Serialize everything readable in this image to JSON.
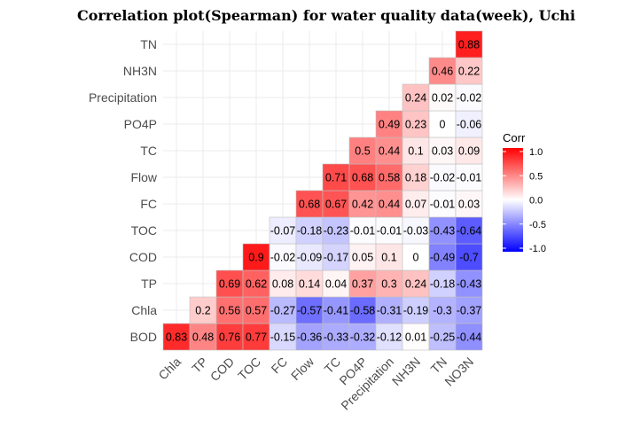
{
  "chart_data": {
    "type": "heatmap",
    "title": "Correlation plot(Spearman) for water quality data(week), Uchi",
    "x_categories": [
      "Chla",
      "TP",
      "COD",
      "TOC",
      "FC",
      "Flow",
      "TC",
      "PO4P",
      "Precipitation",
      "NH3N",
      "TN",
      "NO3N"
    ],
    "y_categories": [
      "BOD",
      "Chla",
      "TP",
      "COD",
      "TOC",
      "FC",
      "Flow",
      "TC",
      "PO4P",
      "Precipitation",
      "NH3N",
      "TN"
    ],
    "cells": [
      {
        "x": "Chla",
        "y": "BOD",
        "value": 0.83,
        "label": "0.83"
      },
      {
        "x": "TP",
        "y": "BOD",
        "value": 0.48,
        "label": "0.48"
      },
      {
        "x": "COD",
        "y": "BOD",
        "value": 0.76,
        "label": "0.76"
      },
      {
        "x": "TOC",
        "y": "BOD",
        "value": 0.77,
        "label": "0.77"
      },
      {
        "x": "FC",
        "y": "BOD",
        "value": -0.15,
        "label": "-0.15"
      },
      {
        "x": "Flow",
        "y": "BOD",
        "value": -0.36,
        "label": "-0.36"
      },
      {
        "x": "TC",
        "y": "BOD",
        "value": -0.33,
        "label": "-0.33"
      },
      {
        "x": "PO4P",
        "y": "BOD",
        "value": -0.32,
        "label": "-0.32"
      },
      {
        "x": "Precipitation",
        "y": "BOD",
        "value": -0.12,
        "label": "-0.12"
      },
      {
        "x": "NH3N",
        "y": "BOD",
        "value": 0.01,
        "label": "0.01"
      },
      {
        "x": "TN",
        "y": "BOD",
        "value": -0.25,
        "label": "-0.25"
      },
      {
        "x": "NO3N",
        "y": "BOD",
        "value": -0.44,
        "label": "-0.44"
      },
      {
        "x": "TP",
        "y": "Chla",
        "value": 0.2,
        "label": "0.2"
      },
      {
        "x": "COD",
        "y": "Chla",
        "value": 0.56,
        "label": "0.56"
      },
      {
        "x": "TOC",
        "y": "Chla",
        "value": 0.57,
        "label": "0.57"
      },
      {
        "x": "FC",
        "y": "Chla",
        "value": -0.27,
        "label": "-0.27"
      },
      {
        "x": "Flow",
        "y": "Chla",
        "value": -0.57,
        "label": "-0.57"
      },
      {
        "x": "TC",
        "y": "Chla",
        "value": -0.41,
        "label": "-0.41"
      },
      {
        "x": "PO4P",
        "y": "Chla",
        "value": -0.58,
        "label": "-0.58"
      },
      {
        "x": "Precipitation",
        "y": "Chla",
        "value": -0.31,
        "label": "-0.31"
      },
      {
        "x": "NH3N",
        "y": "Chla",
        "value": -0.19,
        "label": "-0.19"
      },
      {
        "x": "TN",
        "y": "Chla",
        "value": -0.3,
        "label": "-0.3"
      },
      {
        "x": "NO3N",
        "y": "Chla",
        "value": -0.37,
        "label": "-0.37"
      },
      {
        "x": "COD",
        "y": "TP",
        "value": 0.69,
        "label": "0.69"
      },
      {
        "x": "TOC",
        "y": "TP",
        "value": 0.62,
        "label": "0.62"
      },
      {
        "x": "FC",
        "y": "TP",
        "value": 0.08,
        "label": "0.08"
      },
      {
        "x": "Flow",
        "y": "TP",
        "value": 0.14,
        "label": "0.14"
      },
      {
        "x": "TC",
        "y": "TP",
        "value": 0.04,
        "label": "0.04"
      },
      {
        "x": "PO4P",
        "y": "TP",
        "value": 0.37,
        "label": "0.37"
      },
      {
        "x": "Precipitation",
        "y": "TP",
        "value": 0.3,
        "label": "0.3"
      },
      {
        "x": "NH3N",
        "y": "TP",
        "value": 0.24,
        "label": "0.24"
      },
      {
        "x": "TN",
        "y": "TP",
        "value": -0.18,
        "label": "-0.18"
      },
      {
        "x": "NO3N",
        "y": "TP",
        "value": -0.43,
        "label": "-0.43"
      },
      {
        "x": "TOC",
        "y": "COD",
        "value": 0.9,
        "label": "0.9"
      },
      {
        "x": "FC",
        "y": "COD",
        "value": -0.02,
        "label": "-0.02"
      },
      {
        "x": "Flow",
        "y": "COD",
        "value": -0.09,
        "label": "-0.09"
      },
      {
        "x": "TC",
        "y": "COD",
        "value": -0.17,
        "label": "-0.17"
      },
      {
        "x": "PO4P",
        "y": "COD",
        "value": 0.05,
        "label": "0.05"
      },
      {
        "x": "Precipitation",
        "y": "COD",
        "value": 0.1,
        "label": "0.1"
      },
      {
        "x": "NH3N",
        "y": "COD",
        "value": 0,
        "label": "0"
      },
      {
        "x": "TN",
        "y": "COD",
        "value": -0.49,
        "label": "-0.49"
      },
      {
        "x": "NO3N",
        "y": "COD",
        "value": -0.7,
        "label": "-0.7"
      },
      {
        "x": "FC",
        "y": "TOC",
        "value": -0.07,
        "label": "-0.07"
      },
      {
        "x": "Flow",
        "y": "TOC",
        "value": -0.18,
        "label": "-0.18"
      },
      {
        "x": "TC",
        "y": "TOC",
        "value": -0.23,
        "label": "-0.23"
      },
      {
        "x": "PO4P",
        "y": "TOC",
        "value": -0.01,
        "label": "-0.01"
      },
      {
        "x": "Precipitation",
        "y": "TOC",
        "value": -0.01,
        "label": "-0.01"
      },
      {
        "x": "NH3N",
        "y": "TOC",
        "value": -0.03,
        "label": "-0.03"
      },
      {
        "x": "TN",
        "y": "TOC",
        "value": -0.43,
        "label": "-0.43"
      },
      {
        "x": "NO3N",
        "y": "TOC",
        "value": -0.64,
        "label": "-0.64"
      },
      {
        "x": "Flow",
        "y": "FC",
        "value": 0.68,
        "label": "0.68"
      },
      {
        "x": "TC",
        "y": "FC",
        "value": 0.67,
        "label": "0.67"
      },
      {
        "x": "PO4P",
        "y": "FC",
        "value": 0.42,
        "label": "0.42"
      },
      {
        "x": "Precipitation",
        "y": "FC",
        "value": 0.44,
        "label": "0.44"
      },
      {
        "x": "NH3N",
        "y": "FC",
        "value": 0.07,
        "label": "0.07"
      },
      {
        "x": "TN",
        "y": "FC",
        "value": -0.01,
        "label": "-0.01"
      },
      {
        "x": "NO3N",
        "y": "FC",
        "value": 0.03,
        "label": "0.03"
      },
      {
        "x": "TC",
        "y": "Flow",
        "value": 0.71,
        "label": "0.71"
      },
      {
        "x": "PO4P",
        "y": "Flow",
        "value": 0.68,
        "label": "0.68"
      },
      {
        "x": "Precipitation",
        "y": "Flow",
        "value": 0.58,
        "label": "0.58"
      },
      {
        "x": "NH3N",
        "y": "Flow",
        "value": 0.18,
        "label": "0.18"
      },
      {
        "x": "TN",
        "y": "Flow",
        "value": -0.02,
        "label": "-0.02"
      },
      {
        "x": "NO3N",
        "y": "Flow",
        "value": -0.01,
        "label": "-0.01"
      },
      {
        "x": "PO4P",
        "y": "TC",
        "value": 0.5,
        "label": "0.5"
      },
      {
        "x": "Precipitation",
        "y": "TC",
        "value": 0.44,
        "label": "0.44"
      },
      {
        "x": "NH3N",
        "y": "TC",
        "value": 0.1,
        "label": "0.1"
      },
      {
        "x": "TN",
        "y": "TC",
        "value": 0.03,
        "label": "0.03"
      },
      {
        "x": "NO3N",
        "y": "TC",
        "value": 0.09,
        "label": "0.09"
      },
      {
        "x": "Precipitation",
        "y": "PO4P",
        "value": 0.49,
        "label": "0.49"
      },
      {
        "x": "NH3N",
        "y": "PO4P",
        "value": 0.23,
        "label": "0.23"
      },
      {
        "x": "TN",
        "y": "PO4P",
        "value": 0,
        "label": "0"
      },
      {
        "x": "NO3N",
        "y": "PO4P",
        "value": -0.06,
        "label": "-0.06"
      },
      {
        "x": "NH3N",
        "y": "Precipitation",
        "value": 0.24,
        "label": "0.24"
      },
      {
        "x": "TN",
        "y": "Precipitation",
        "value": 0.02,
        "label": "0.02"
      },
      {
        "x": "NO3N",
        "y": "Precipitation",
        "value": -0.02,
        "label": "-0.02"
      },
      {
        "x": "TN",
        "y": "NH3N",
        "value": 0.46,
        "label": "0.46"
      },
      {
        "x": "NO3N",
        "y": "NH3N",
        "value": 0.22,
        "label": "0.22"
      },
      {
        "x": "NO3N",
        "y": "TN",
        "value": 0.88,
        "label": "0.88"
      }
    ],
    "legend": {
      "title": "Corr",
      "ticks": [
        "1.0",
        "0.5",
        "0.0",
        "-0.5",
        "-1.0"
      ],
      "tick_values": [
        1,
        0.5,
        0,
        -0.5,
        -1
      ],
      "range": [
        -1,
        1
      ],
      "placement": "right"
    },
    "colors": {
      "low": "#0000ff",
      "mid": "#ffffff",
      "high": "#ff0000"
    },
    "grid": true
  }
}
